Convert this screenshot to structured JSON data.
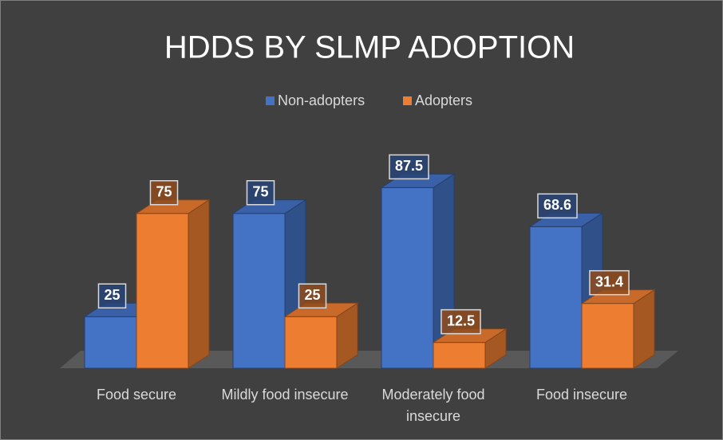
{
  "chart_data": {
    "type": "bar3d",
    "title": "HDDS BY SLMP ADOPTION",
    "categories": [
      "Food secure",
      "Mildly food insecure",
      "Moderately food insecure",
      "Food insecure"
    ],
    "series": [
      {
        "name": "Non-adopters",
        "color": "#4472c4",
        "values": [
          25,
          75,
          87.5,
          68.6
        ]
      },
      {
        "name": "Adopters",
        "color": "#ed7d31",
        "values": [
          75,
          25,
          12.5,
          31.4
        ]
      }
    ],
    "legend": "top"
  }
}
